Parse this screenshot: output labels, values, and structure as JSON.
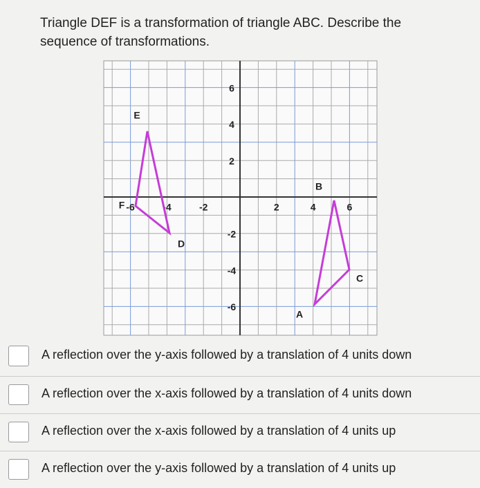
{
  "question": "Triangle DEF is a transformation of triangle ABC. Describe the sequence of transformations.",
  "graph": {
    "x_tick_labels": [
      "-6",
      "-4",
      "-2",
      "2",
      "4",
      "6"
    ],
    "y_tick_labels": [
      "6",
      "4",
      "2",
      "-2",
      "-4",
      "-6"
    ],
    "vertices": [
      "A",
      "B",
      "C",
      "D",
      "E",
      "F"
    ]
  },
  "options": [
    "A reflection over the y-axis followed by a translation of 4 units down",
    "A reflection over the x-axis followed by a translation of 4 units down",
    "A reflection over the x-axis followed by a translation of 4 units up",
    "A reflection over the y-axis followed by a translation of 4 units up"
  ]
}
